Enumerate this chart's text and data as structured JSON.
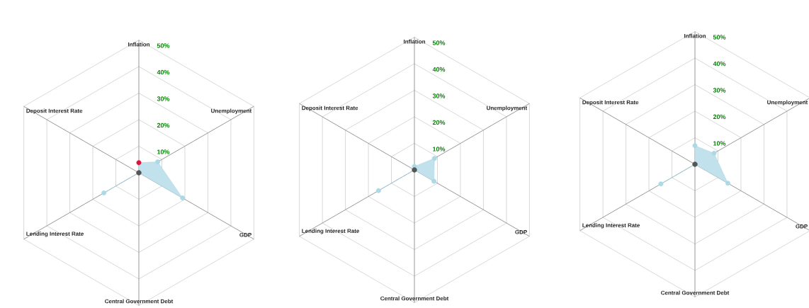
{
  "chart_data": [
    {
      "type": "radar",
      "categories": [
        "Inflation",
        "Unemployment",
        "GDP",
        "Central Government Debt",
        "Lending Interest Rate",
        "Deposit Interest Rate"
      ],
      "series": [
        {
          "color": "#add8e6",
          "colors": [
            "#dc143c",
            "#add8e6",
            "#add8e6",
            "#555555",
            "#add8e6",
            "#555555"
          ],
          "values": [
            3.8,
            8.2,
            19,
            0,
            15.2,
            0
          ]
        }
      ],
      "ylim": [
        0,
        50
      ],
      "yticks": [
        {
          "value": 10,
          "label": "10%"
        },
        {
          "value": 20,
          "label": "20%"
        },
        {
          "value": 30,
          "label": "30%"
        },
        {
          "value": 40,
          "label": "40%"
        },
        {
          "value": 50,
          "label": "50%"
        }
      ],
      "grid": true,
      "marker": "circle"
    },
    {
      "type": "radar",
      "categories": [
        "Inflation",
        "Unemployment",
        "GDP",
        "Central Government Debt",
        "Lending Interest Rate",
        "Deposit Interest Rate"
      ],
      "series": [
        {
          "color": "#add8e6",
          "colors": [
            "#add8e6",
            "#add8e6",
            "#add8e6",
            "#555555",
            "#add8e6",
            "#555555"
          ],
          "values": [
            1.3,
            8.7,
            8.5,
            0,
            15.6,
            0
          ]
        }
      ],
      "ylim": [
        0,
        50
      ],
      "yticks": [
        {
          "value": 10,
          "label": "10%"
        },
        {
          "value": 20,
          "label": "20%"
        },
        {
          "value": 30,
          "label": "30%"
        },
        {
          "value": 40,
          "label": "40%"
        },
        {
          "value": 50,
          "label": "50%"
        }
      ],
      "grid": true,
      "marker": "circle"
    },
    {
      "type": "radar",
      "categories": [
        "Inflation",
        "Unemployment",
        "GDP",
        "Central Government Debt",
        "Lending Interest Rate",
        "Deposit Interest Rate"
      ],
      "series": [
        {
          "color": "#add8e6",
          "colors": [
            "#add8e6",
            "#add8e6",
            "#add8e6",
            "#555555",
            "#add8e6",
            "#555555"
          ],
          "values": [
            7.0,
            8.3,
            14.3,
            0,
            14.8,
            0
          ]
        }
      ],
      "ylim": [
        0,
        50
      ],
      "yticks": [
        {
          "value": 10,
          "label": "10%"
        },
        {
          "value": 20,
          "label": "20%"
        },
        {
          "value": 30,
          "label": "30%"
        },
        {
          "value": 40,
          "label": "40%"
        },
        {
          "value": 50,
          "label": "50%"
        }
      ],
      "grid": true,
      "marker": "circle"
    }
  ]
}
